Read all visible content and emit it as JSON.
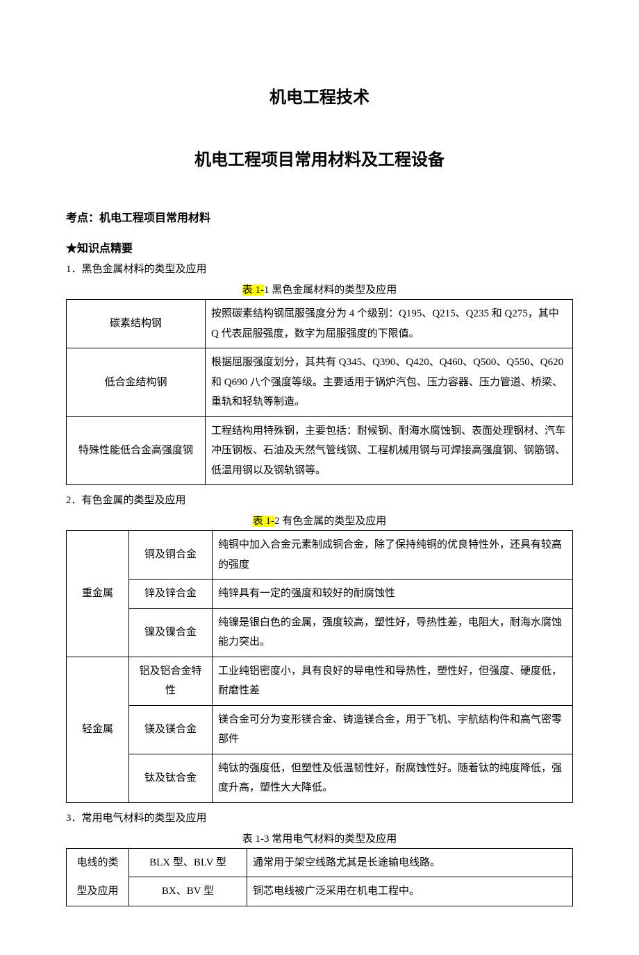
{
  "colors": {
    "text": "#000000",
    "background": "#ffffff",
    "border": "#000000",
    "highlight": "#ffff00"
  },
  "typography": {
    "title_fontsize": 24,
    "heading_fontsize": 16,
    "body_fontsize": 15,
    "font_family": "SimSun"
  },
  "title1": "机电工程技术",
  "title2": "机电工程项目常用材料及工程设备",
  "heading": "考点：机电工程项目常用材料",
  "knowledge_heading": "★知识点精要",
  "section1": {
    "line": "1．黑色金属材料的类型及应用",
    "caption_hl": "表 1-",
    "caption_rest": "1 黑色金属材料的类型及应用",
    "table": {
      "type": "table",
      "col_widths": [
        "200px",
        "auto"
      ],
      "alignment": [
        "center",
        "left"
      ],
      "border_color": "#000000",
      "rows": [
        [
          "碳素结构钢",
          "按照碳素结构钢屈服强度分为 4 个级别：Q195、Q215、Q235 和 Q275，其中 Q 代表屈服强度，数字为屈服强度的下限值。"
        ],
        [
          "低合金结构钢",
          "根据屈服强度划分，其共有 Q345、Q390、Q420、Q460、Q500、Q550、Q620 和 Q690 八个强度等级。主要适用于锅炉汽包、压力容器、压力管道、桥梁、重轨和轻轨等制造。"
        ],
        [
          "特殊性能低合金高强度钢",
          "工程结构用特殊钢，主要包括：耐候钢、耐海水腐蚀钢、表面处理钢材、汽车冲压钢板、石油及天然气管线钢、工程机械用钢与可焊接高强度钢、钢筋钢、低温用钢以及钢轨钢等。"
        ]
      ]
    }
  },
  "section2": {
    "line": "2．有色金属的类型及应用",
    "caption_hl": "表 1-",
    "caption_rest": "2  有色金属的类型及应用",
    "table": {
      "type": "table",
      "col_widths": [
        "90px",
        "120px",
        "auto"
      ],
      "alignment": [
        "center",
        "center",
        "left"
      ],
      "border_color": "#000000",
      "groups": [
        {
          "label": "重金属",
          "rows": [
            [
              "铜及铜合金",
              "纯铜中加入合金元素制成铜合金，除了保持纯铜的优良特性外，还具有较高的强度"
            ],
            [
              "锌及锌合金",
              "纯锌具有一定的强度和较好的耐腐蚀性"
            ],
            [
              "镍及镍合金",
              "纯镍是银白色的金属，强度较高，塑性好，导热性差，电阻大，耐海水腐蚀能力突出。"
            ]
          ]
        },
        {
          "label": "轻金属",
          "rows": [
            [
              "铝及铝合金特性",
              "工业纯铝密度小，具有良好的导电性和导热性，塑性好，但强度、硬度低，耐磨性差"
            ],
            [
              "镁及镁合金",
              "镁合金可分为变形镁合金、铸造镁合金，用于飞机、宇航结构件和高气密零部件"
            ],
            [
              "钛及钛合金",
              "纯钛的强度低，但塑性及低温韧性好，耐腐蚀性好。随着钛的纯度降低，强度升高，塑性大大降低。"
            ]
          ]
        }
      ]
    }
  },
  "section3": {
    "line": "3．常用电气材料的类型及应用",
    "caption": "表 1-3 常用电气材料的类型及应用",
    "table": {
      "type": "table",
      "col_widths": [
        "90px",
        "170px",
        "auto"
      ],
      "alignment": [
        "center",
        "center",
        "left"
      ],
      "border_color": "#000000",
      "label_line1": "电线的类",
      "label_line2": "型及应用",
      "rows": [
        [
          "BLX 型、BLV 型",
          "通常用于架空线路尤其是长途输电线路。"
        ],
        [
          "BX、BV 型",
          "铜芯电线被广泛采用在机电工程中。"
        ]
      ]
    }
  }
}
